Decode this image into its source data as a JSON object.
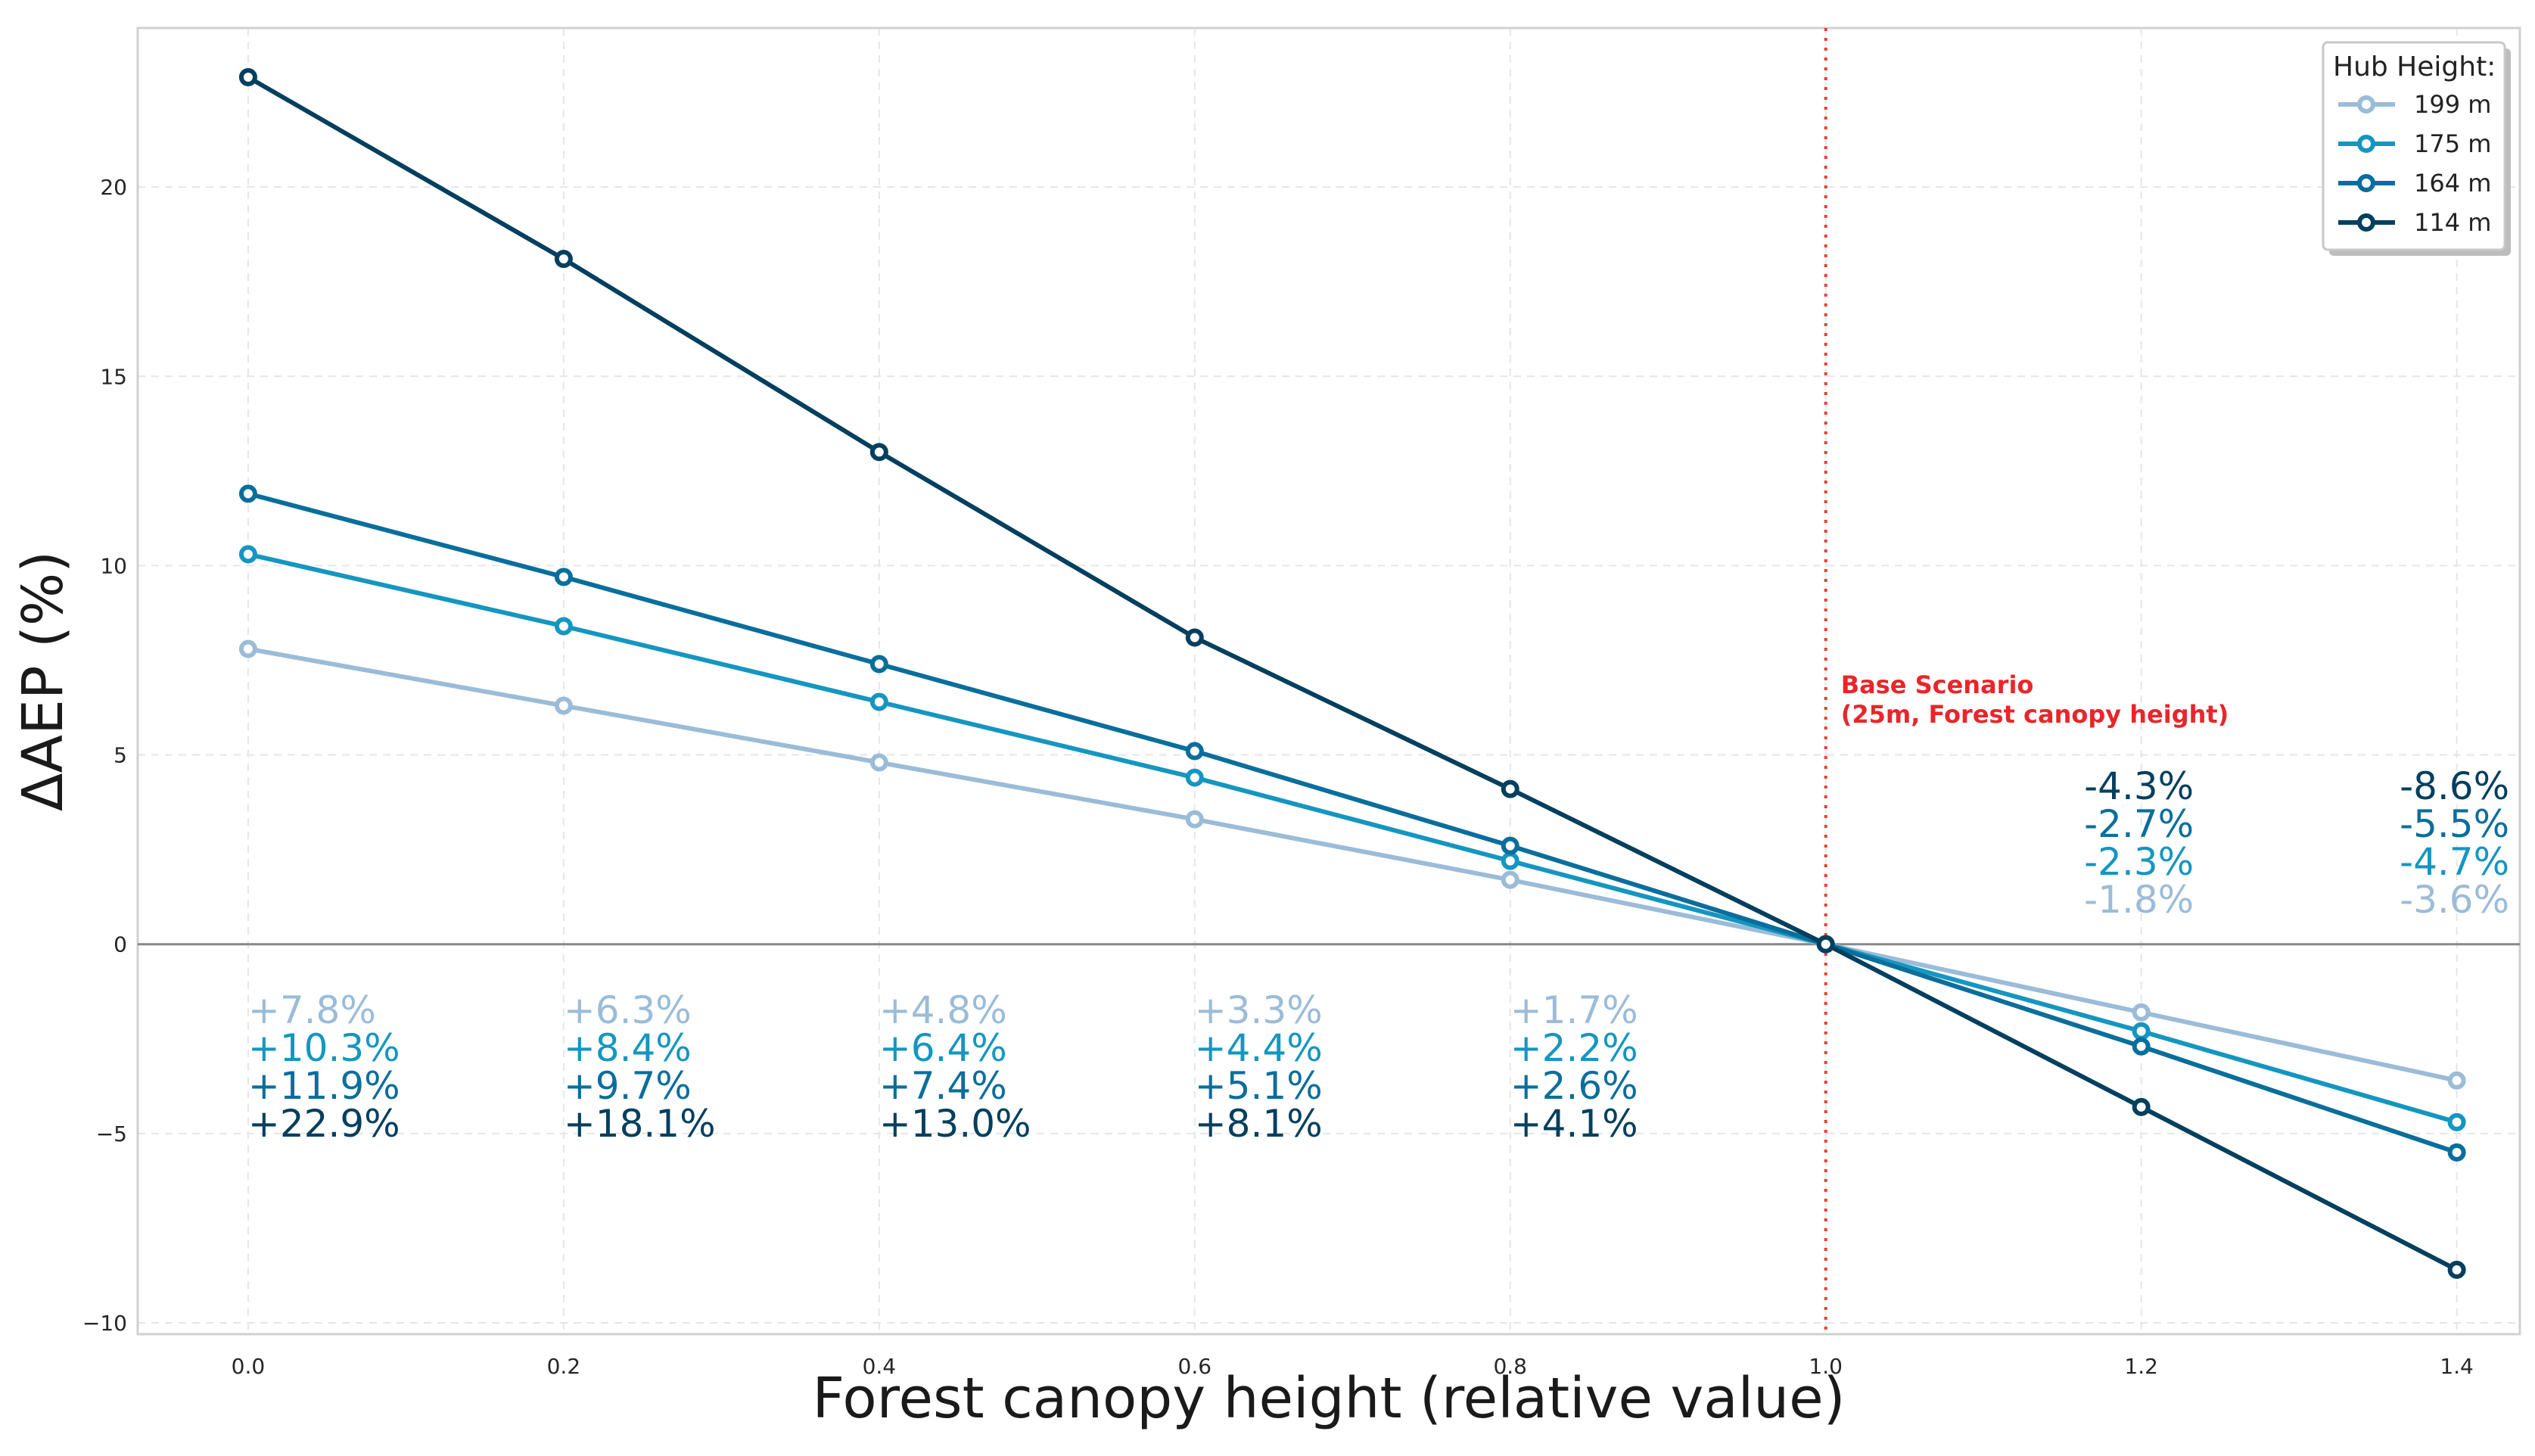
{
  "chart_data": {
    "type": "line",
    "title": "",
    "xlabel": "Forest canopy height (relative value)",
    "ylabel": "ΔAEP (%)",
    "xlim": [
      -0.07,
      1.44
    ],
    "ylim": [
      -10.3,
      24.2
    ],
    "x": [
      0.0,
      0.2,
      0.4,
      0.6,
      0.8,
      1.0,
      1.2,
      1.4
    ],
    "x_tick_labels": [
      "0.0",
      "0.2",
      "0.4",
      "0.6",
      "0.8",
      "1.0",
      "1.2",
      "1.4"
    ],
    "y_ticks": [
      -10,
      -5,
      0,
      5,
      10,
      15,
      20
    ],
    "y_tick_labels": [
      "−10",
      "−5",
      "0",
      "5",
      "10",
      "15",
      "20"
    ],
    "grid": true,
    "legend": {
      "title": "Hub Height:",
      "placement": "top-right"
    },
    "series": [
      {
        "name": "199 m",
        "color": "#9bbcd8",
        "values": [
          7.8,
          6.3,
          4.8,
          3.3,
          1.7,
          0.0,
          -1.8,
          -3.6
        ],
        "labels": [
          "+7.8%",
          "+6.3%",
          "+4.8%",
          "+3.3%",
          "+1.7%",
          "",
          "-1.8%",
          "-3.6%"
        ]
      },
      {
        "name": "175 m",
        "color": "#1596c0",
        "values": [
          10.3,
          8.4,
          6.4,
          4.4,
          2.2,
          0.0,
          -2.3,
          -4.7
        ],
        "labels": [
          "+10.3%",
          "+8.4%",
          "+6.4%",
          "+4.4%",
          "+2.2%",
          "",
          "-2.3%",
          "-4.7%"
        ]
      },
      {
        "name": "164 m",
        "color": "#0a6e9c",
        "values": [
          11.9,
          9.7,
          7.4,
          5.1,
          2.6,
          0.0,
          -2.7,
          -5.5
        ],
        "labels": [
          "+11.9%",
          "+9.7%",
          "+7.4%",
          "+5.1%",
          "+2.6%",
          "",
          "-2.7%",
          "-5.5%"
        ]
      },
      {
        "name": "114 m",
        "color": "#033f5e",
        "values": [
          22.9,
          18.1,
          13.0,
          8.1,
          4.1,
          0.0,
          -4.3,
          -8.6
        ],
        "labels": [
          "+22.9%",
          "+18.1%",
          "+13.0%",
          "+8.1%",
          "+4.1%",
          "",
          "-4.3%",
          "-8.6%"
        ]
      }
    ],
    "reference_line": {
      "x": 1.0,
      "color": "#e8412f"
    },
    "annotations": [
      {
        "text": "Base Scenario",
        "color": "#e8262a"
      },
      {
        "text": "(25m, Forest canopy height)",
        "color": "#e8262a"
      }
    ]
  }
}
